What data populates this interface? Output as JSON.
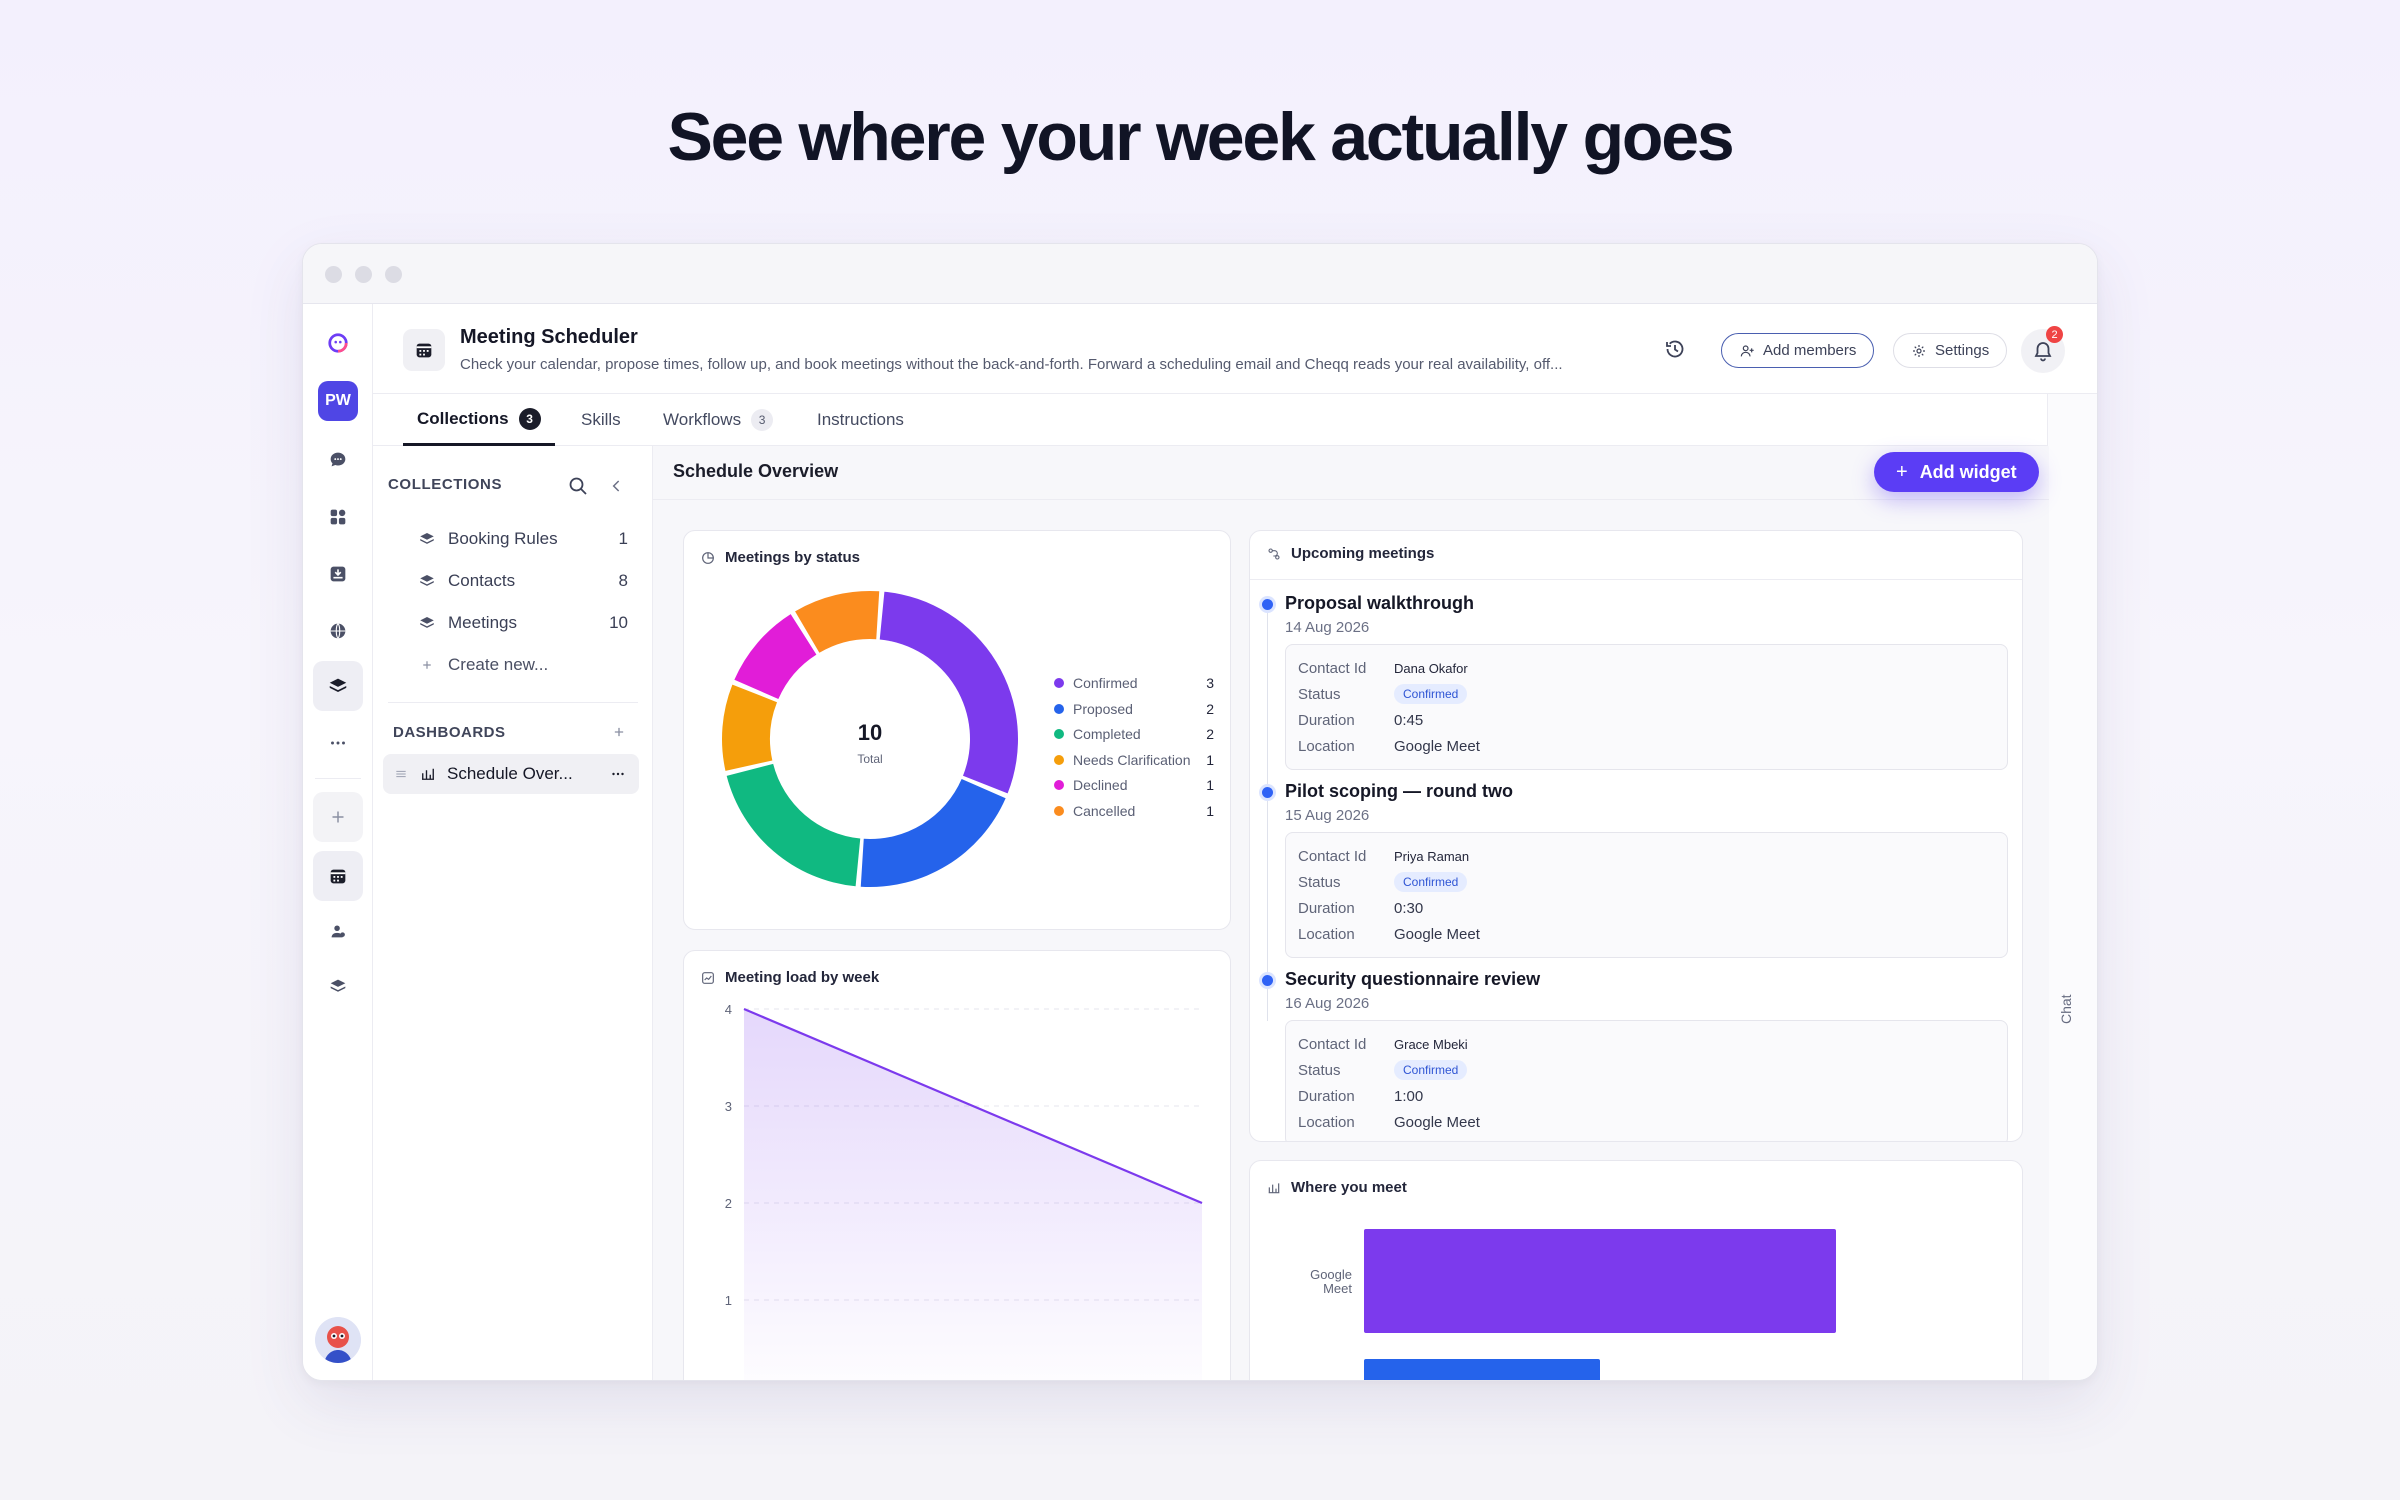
{
  "hero": {
    "title": "See where your week actually goes"
  },
  "sidebar": {
    "avatar_initials": "PW"
  },
  "header": {
    "title": "Meeting Scheduler",
    "description": "Check your calendar, propose times, follow up, and book meetings without the back-and-forth. Forward a scheduling email and Cheqq reads your real availability, off...",
    "add_members": "Add members",
    "settings": "Settings",
    "notifications_count": "2"
  },
  "tabs": [
    {
      "label": "Collections",
      "count": "3"
    },
    {
      "label": "Skills"
    },
    {
      "label": "Workflows",
      "count": "3"
    },
    {
      "label": "Instructions"
    }
  ],
  "chat_label": "Chat",
  "collections": {
    "heading": "COLLECTIONS",
    "items": [
      {
        "label": "Booking Rules",
        "count": "1"
      },
      {
        "label": "Contacts",
        "count": "8"
      },
      {
        "label": "Meetings",
        "count": "10"
      }
    ],
    "create_new": "Create new...",
    "dashboards_heading": "DASHBOARDS",
    "dashboard_item": "Schedule Over..."
  },
  "main": {
    "title": "Schedule Overview",
    "add_widget": "Add widget"
  },
  "widgets": {
    "status_title": "Meetings by status",
    "donut_total": "10",
    "donut_total_label": "Total",
    "load_title": "Meeting load by week",
    "upcoming_title": "Upcoming meetings",
    "where_title": "Where you meet"
  },
  "upcoming": [
    {
      "title": "Proposal walkthrough",
      "date": "14 Aug 2026",
      "contact": "Dana Okafor",
      "status": "Confirmed",
      "duration": "0:45",
      "location": "Google Meet"
    },
    {
      "title": "Pilot scoping — round two",
      "date": "15 Aug 2026",
      "contact": "Priya Raman",
      "status": "Confirmed",
      "duration": "0:30",
      "location": "Google Meet"
    },
    {
      "title": "Security questionnaire review",
      "date": "16 Aug 2026",
      "contact": "Grace Mbeki",
      "status": "Confirmed",
      "duration": "1:00",
      "location": "Google Meet"
    }
  ],
  "field_labels": {
    "contact": "Contact Id",
    "status": "Status",
    "duration": "Duration",
    "location": "Location"
  },
  "colors": {
    "accent": "#5b3df5",
    "confirmed": "#7c3aed",
    "proposed": "#2563eb",
    "completed": "#10b981",
    "needs_clarification": "#f59e0b",
    "declined": "#e11dd8",
    "cancelled": "#fb8c1e"
  },
  "chart_data": [
    {
      "type": "pie",
      "title": "Meetings by status",
      "categories": [
        "Confirmed",
        "Proposed",
        "Completed",
        "Needs Clarification",
        "Declined",
        "Cancelled"
      ],
      "values": [
        3,
        2,
        2,
        1,
        1,
        1
      ],
      "colors": [
        "#7c3aed",
        "#2563eb",
        "#10b981",
        "#f59e0b",
        "#e11dd8",
        "#fb8c1e"
      ],
      "total": 10,
      "legend": "right"
    },
    {
      "type": "area",
      "title": "Meeting load by week",
      "y": [
        4,
        2
      ],
      "yticks": [
        4,
        3,
        2,
        1
      ],
      "ylim": [
        0,
        4
      ],
      "grid": true,
      "color": "#7c3aed"
    },
    {
      "type": "bar",
      "title": "Where you meet",
      "orientation": "horizontal",
      "categories": [
        "Google Meet",
        ""
      ],
      "values": [
        8,
        4
      ],
      "colors": [
        "#7c3aed",
        "#2563eb"
      ]
    }
  ]
}
